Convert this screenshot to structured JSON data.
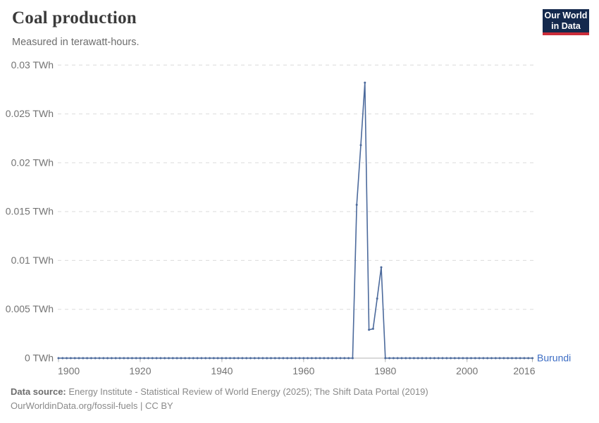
{
  "header": {
    "title": "Coal production",
    "subtitle": "Measured in terawatt-hours.",
    "logo": {
      "line1": "Our World",
      "line2": "in Data"
    }
  },
  "footer": {
    "source_label": "Data source:",
    "source_text": "Energy Institute - Statistical Review of World Energy (2025); The Shift Data Portal (2019)",
    "license_text": "OurWorldinData.org/fossil-fuels | CC BY"
  },
  "colors": {
    "line": "#4C6A9C",
    "entity_label": "#3C6DC4",
    "grid": "#dcdcdc",
    "zero_line": "#b3b3b3",
    "tick_text": "#737373",
    "logo_bg": "#14294d",
    "logo_red": "#cb2d3a"
  },
  "chart_data": {
    "type": "line",
    "title": "Coal production",
    "subtitle": "Measured in terawatt-hours.",
    "unit": "TWh",
    "grid": true,
    "legend_position": "end-of-line",
    "x_range": [
      1900,
      2016
    ],
    "y_range": [
      0,
      0.03
    ],
    "x_ticks": [
      {
        "value": 1900,
        "label": "1900"
      },
      {
        "value": 1920,
        "label": "1920"
      },
      {
        "value": 1940,
        "label": "1940"
      },
      {
        "value": 1960,
        "label": "1960"
      },
      {
        "value": 1980,
        "label": "1980"
      },
      {
        "value": 2000,
        "label": "2000"
      },
      {
        "value": 2016,
        "label": "2016"
      }
    ],
    "y_ticks": [
      {
        "value": 0,
        "label": "0 TWh"
      },
      {
        "value": 0.005,
        "label": "0.005 TWh"
      },
      {
        "value": 0.01,
        "label": "0.01 TWh"
      },
      {
        "value": 0.015,
        "label": "0.015 TWh"
      },
      {
        "value": 0.02,
        "label": "0.02 TWh"
      },
      {
        "value": 0.025,
        "label": "0.025 TWh"
      },
      {
        "value": 0.03,
        "label": "0.03 TWh"
      }
    ],
    "series": [
      {
        "name": "Burundi",
        "start_year": 1900,
        "end_year": 2016,
        "default_value": 0,
        "values_by_year": {
          "1973": 0.0157,
          "1974": 0.0218,
          "1975": 0.0282,
          "1976": 0.0029,
          "1977": 0.003,
          "1978": 0.0061,
          "1979": 0.0093
        }
      }
    ]
  }
}
